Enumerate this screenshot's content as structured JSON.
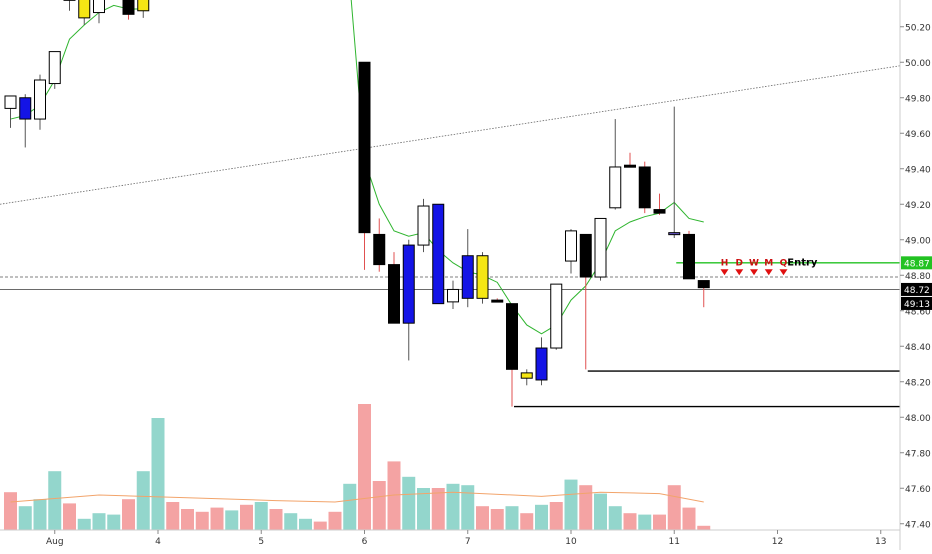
{
  "chart_data": {
    "type": "candlestick",
    "y_axis": {
      "range": [
        47.4,
        50.3
      ],
      "ticks": [
        "47.40",
        "47.60",
        "47.80",
        "48.00",
        "48.20",
        "48.40",
        "48.60",
        "48.80",
        "49.00",
        "49.20",
        "49.40",
        "49.60",
        "49.80",
        "50.00",
        "50.20"
      ],
      "tick_values": [
        47.4,
        47.6,
        47.8,
        48.0,
        48.2,
        48.4,
        48.6,
        48.8,
        49.0,
        49.2,
        49.4,
        49.6,
        49.8,
        50.0,
        50.2
      ]
    },
    "x_axis": {
      "labels": [
        {
          "text": "Aug",
          "index": 3
        },
        {
          "text": "4",
          "index": 10
        },
        {
          "text": "5",
          "index": 17
        },
        {
          "text": "6",
          "index": 24
        },
        {
          "text": "7",
          "index": 31
        },
        {
          "text": "10",
          "index": 38
        },
        {
          "text": "11",
          "index": 45
        },
        {
          "text": "12",
          "index": 52
        },
        {
          "text": "13",
          "index": 59
        }
      ],
      "slot_count": 63
    },
    "candles": [
      {
        "i": 0,
        "o": 49.74,
        "h": 49.81,
        "l": 49.63,
        "c": 49.81,
        "color": "white"
      },
      {
        "i": 1,
        "o": 49.8,
        "h": 49.82,
        "l": 49.52,
        "c": 49.68,
        "color": "blue"
      },
      {
        "i": 2,
        "o": 49.68,
        "h": 49.93,
        "l": 49.62,
        "c": 49.9,
        "color": "white"
      },
      {
        "i": 3,
        "o": 49.88,
        "h": 50.06,
        "l": 49.85,
        "c": 50.06,
        "color": "white"
      },
      {
        "i": 4,
        "o": 50.36,
        "h": 50.38,
        "l": 50.29,
        "c": 50.36,
        "color": "white"
      },
      {
        "i": 5,
        "o": 50.37,
        "h": 50.4,
        "l": 50.21,
        "c": 50.25,
        "color": "yellow"
      },
      {
        "i": 6,
        "o": 50.28,
        "h": 50.4,
        "l": 50.22,
        "c": 50.36,
        "color": "white"
      },
      {
        "i": 8,
        "o": 50.36,
        "h": 50.38,
        "l": 50.24,
        "c": 50.27,
        "color": "black"
      },
      {
        "i": 9,
        "o": 50.36,
        "h": 50.38,
        "l": 50.25,
        "c": 50.29,
        "color": "yellow"
      },
      {
        "i": 24,
        "o": 50.0,
        "h": 50.0,
        "l": 48.83,
        "c": 49.04,
        "color": "black"
      },
      {
        "i": 25,
        "o": 49.03,
        "h": 49.12,
        "l": 48.82,
        "c": 48.86,
        "color": "black"
      },
      {
        "i": 26,
        "o": 48.86,
        "h": 48.93,
        "l": 48.53,
        "c": 48.53,
        "color": "black"
      },
      {
        "i": 27,
        "o": 48.53,
        "h": 49.0,
        "l": 48.32,
        "c": 48.97,
        "color": "blue"
      },
      {
        "i": 28,
        "o": 48.97,
        "h": 49.23,
        "l": 48.93,
        "c": 49.19,
        "color": "white"
      },
      {
        "i": 29,
        "o": 49.2,
        "h": 49.2,
        "l": 48.64,
        "c": 48.64,
        "color": "blue"
      },
      {
        "i": 30,
        "o": 48.65,
        "h": 48.77,
        "l": 48.61,
        "c": 48.72,
        "color": "white"
      },
      {
        "i": 31,
        "o": 48.91,
        "h": 49.06,
        "l": 48.62,
        "c": 48.67,
        "color": "blue"
      },
      {
        "i": 32,
        "o": 48.67,
        "h": 48.93,
        "l": 48.64,
        "c": 48.91,
        "color": "yellow"
      },
      {
        "i": 33,
        "o": 48.66,
        "h": 48.67,
        "l": 48.66,
        "c": 48.66,
        "color": "black"
      },
      {
        "i": 34,
        "o": 48.64,
        "h": 48.64,
        "l": 48.06,
        "c": 48.27,
        "color": "black"
      },
      {
        "i": 35,
        "o": 48.22,
        "h": 48.27,
        "l": 48.18,
        "c": 48.25,
        "color": "yellow"
      },
      {
        "i": 36,
        "o": 48.21,
        "h": 48.45,
        "l": 48.18,
        "c": 48.39,
        "color": "blue"
      },
      {
        "i": 37,
        "o": 48.39,
        "h": 48.75,
        "l": 48.38,
        "c": 48.75,
        "color": "white"
      },
      {
        "i": 38,
        "o": 48.88,
        "h": 49.06,
        "l": 48.81,
        "c": 49.05,
        "color": "white"
      },
      {
        "i": 39,
        "o": 49.03,
        "h": 49.03,
        "l": 48.27,
        "c": 48.79,
        "color": "black"
      },
      {
        "i": 40,
        "o": 48.79,
        "h": 49.12,
        "l": 48.77,
        "c": 49.12,
        "color": "white"
      },
      {
        "i": 41,
        "o": 49.18,
        "h": 49.68,
        "l": 49.17,
        "c": 49.41,
        "color": "white"
      },
      {
        "i": 42,
        "o": 49.42,
        "h": 49.49,
        "l": 49.42,
        "c": 49.42,
        "color": "black"
      },
      {
        "i": 43,
        "o": 49.41,
        "h": 49.44,
        "l": 49.15,
        "c": 49.18,
        "color": "black"
      },
      {
        "i": 44,
        "o": 49.17,
        "h": 49.26,
        "l": 49.14,
        "c": 49.15,
        "color": "black"
      },
      {
        "i": 45,
        "o": 49.04,
        "h": 49.75,
        "l": 49.01,
        "c": 49.04,
        "color": "purple"
      },
      {
        "i": 46,
        "o": 49.03,
        "h": 49.05,
        "l": 48.79,
        "c": 48.78,
        "color": "black"
      },
      {
        "i": 47,
        "o": 48.77,
        "h": 48.77,
        "l": 48.62,
        "c": 48.73,
        "color": "black"
      }
    ],
    "ema": [
      {
        "i": 0,
        "v": 49.68
      },
      {
        "i": 1,
        "v": 49.7
      },
      {
        "i": 2,
        "v": 49.76
      },
      {
        "i": 3,
        "v": 49.9
      },
      {
        "i": 4,
        "v": 50.13
      },
      {
        "i": 5,
        "v": 50.21
      },
      {
        "i": 6,
        "v": 50.28
      },
      {
        "i": 7,
        "v": 50.32
      },
      {
        "i": 8,
        "v": 50.3
      },
      {
        "i": 9,
        "v": 50.3
      },
      {
        "i": 23,
        "v": 50.45
      },
      {
        "i": 24,
        "v": 49.45
      },
      {
        "i": 25,
        "v": 49.2
      },
      {
        "i": 26,
        "v": 49.05
      },
      {
        "i": 27,
        "v": 49.02
      },
      {
        "i": 28,
        "v": 49.04
      },
      {
        "i": 29,
        "v": 48.94
      },
      {
        "i": 30,
        "v": 48.87
      },
      {
        "i": 31,
        "v": 48.82
      },
      {
        "i": 32,
        "v": 48.8
      },
      {
        "i": 33,
        "v": 48.76
      },
      {
        "i": 34,
        "v": 48.63
      },
      {
        "i": 35,
        "v": 48.52
      },
      {
        "i": 36,
        "v": 48.47
      },
      {
        "i": 37,
        "v": 48.52
      },
      {
        "i": 38,
        "v": 48.66
      },
      {
        "i": 39,
        "v": 48.74
      },
      {
        "i": 40,
        "v": 48.87
      },
      {
        "i": 41,
        "v": 49.05
      },
      {
        "i": 42,
        "v": 49.1
      },
      {
        "i": 43,
        "v": 49.13
      },
      {
        "i": 44,
        "v": 49.15
      },
      {
        "i": 45,
        "v": 49.21
      },
      {
        "i": 46,
        "v": 49.12
      },
      {
        "i": 47,
        "v": 49.1
      }
    ],
    "volume": [
      {
        "i": 0,
        "h": 0.27,
        "color": "red"
      },
      {
        "i": 1,
        "h": 0.17,
        "color": "green"
      },
      {
        "i": 2,
        "h": 0.22,
        "color": "green"
      },
      {
        "i": 3,
        "h": 0.42,
        "color": "green"
      },
      {
        "i": 4,
        "h": 0.19,
        "color": "red"
      },
      {
        "i": 5,
        "h": 0.08,
        "color": "green"
      },
      {
        "i": 6,
        "h": 0.12,
        "color": "green"
      },
      {
        "i": 7,
        "h": 0.11,
        "color": "green"
      },
      {
        "i": 8,
        "h": 0.22,
        "color": "red"
      },
      {
        "i": 9,
        "h": 0.42,
        "color": "green"
      },
      {
        "i": 10,
        "h": 0.8,
        "color": "green"
      },
      {
        "i": 11,
        "h": 0.2,
        "color": "red"
      },
      {
        "i": 12,
        "h": 0.15,
        "color": "red"
      },
      {
        "i": 13,
        "h": 0.13,
        "color": "red"
      },
      {
        "i": 14,
        "h": 0.16,
        "color": "red"
      },
      {
        "i": 15,
        "h": 0.14,
        "color": "green"
      },
      {
        "i": 16,
        "h": 0.18,
        "color": "red"
      },
      {
        "i": 17,
        "h": 0.2,
        "color": "green"
      },
      {
        "i": 18,
        "h": 0.15,
        "color": "red"
      },
      {
        "i": 19,
        "h": 0.12,
        "color": "green"
      },
      {
        "i": 20,
        "h": 0.08,
        "color": "green"
      },
      {
        "i": 21,
        "h": 0.06,
        "color": "red"
      },
      {
        "i": 22,
        "h": 0.13,
        "color": "red"
      },
      {
        "i": 23,
        "h": 0.33,
        "color": "green"
      },
      {
        "i": 24,
        "h": 0.9,
        "color": "red"
      },
      {
        "i": 25,
        "h": 0.35,
        "color": "red"
      },
      {
        "i": 26,
        "h": 0.49,
        "color": "red"
      },
      {
        "i": 27,
        "h": 0.38,
        "color": "green"
      },
      {
        "i": 28,
        "h": 0.3,
        "color": "green"
      },
      {
        "i": 29,
        "h": 0.3,
        "color": "red"
      },
      {
        "i": 30,
        "h": 0.33,
        "color": "green"
      },
      {
        "i": 31,
        "h": 0.32,
        "color": "green"
      },
      {
        "i": 32,
        "h": 0.17,
        "color": "red"
      },
      {
        "i": 33,
        "h": 0.15,
        "color": "red"
      },
      {
        "i": 34,
        "h": 0.17,
        "color": "green"
      },
      {
        "i": 35,
        "h": 0.12,
        "color": "red"
      },
      {
        "i": 36,
        "h": 0.18,
        "color": "green"
      },
      {
        "i": 37,
        "h": 0.2,
        "color": "red"
      },
      {
        "i": 38,
        "h": 0.36,
        "color": "green"
      },
      {
        "i": 39,
        "h": 0.32,
        "color": "red"
      },
      {
        "i": 40,
        "h": 0.26,
        "color": "green"
      },
      {
        "i": 41,
        "h": 0.17,
        "color": "green"
      },
      {
        "i": 42,
        "h": 0.12,
        "color": "red"
      },
      {
        "i": 43,
        "h": 0.11,
        "color": "green"
      },
      {
        "i": 44,
        "h": 0.11,
        "color": "red"
      },
      {
        "i": 45,
        "h": 0.32,
        "color": "red"
      },
      {
        "i": 46,
        "h": 0.16,
        "color": "red"
      },
      {
        "i": 47,
        "h": 0.03,
        "color": "red"
      }
    ],
    "volume_ma": [
      {
        "i": 0,
        "v": 0.2
      },
      {
        "i": 6,
        "v": 0.25
      },
      {
        "i": 12,
        "v": 0.23
      },
      {
        "i": 18,
        "v": 0.21
      },
      {
        "i": 22,
        "v": 0.2
      },
      {
        "i": 26,
        "v": 0.25
      },
      {
        "i": 30,
        "v": 0.27
      },
      {
        "i": 36,
        "v": 0.24
      },
      {
        "i": 40,
        "v": 0.27
      },
      {
        "i": 44,
        "v": 0.26
      },
      {
        "i": 47,
        "v": 0.2
      }
    ],
    "horizontal_lines": [
      {
        "name": "target-line",
        "value": 48.87,
        "from_index": 45,
        "color": "#22c222"
      },
      {
        "name": "support-line-1",
        "value": 48.26,
        "from_index": 39,
        "color": "#000000"
      },
      {
        "name": "support-line-2",
        "value": 48.06,
        "from_index": 34,
        "color": "#000000"
      },
      {
        "name": "current-line-1",
        "value": 48.79,
        "from_index": 0,
        "color": "#555555",
        "dashed": true
      },
      {
        "name": "current-line-2",
        "value": 48.72,
        "from_index": 0,
        "color": "#555555",
        "dashed": false
      }
    ],
    "trendline": {
      "from": {
        "i": 0,
        "v": 49.2
      },
      "to": {
        "i": 62,
        "v": 49.98
      }
    },
    "price_tags": [
      {
        "text": "48.87",
        "value": 48.87,
        "bg": "#22c222",
        "fg": "#ffffff"
      },
      {
        "text": "48.72",
        "value": 48.72,
        "bg": "#000000",
        "fg": "#ffffff"
      },
      {
        "text": "49:13",
        "value": 48.64,
        "bg": "#000000",
        "fg": "#ffffff"
      }
    ],
    "signal_markers": [
      {
        "label": "H",
        "i": 48
      },
      {
        "label": "D",
        "i": 49
      },
      {
        "label": "W",
        "i": 50
      },
      {
        "label": "M",
        "i": 51
      },
      {
        "label": "Q",
        "i": 52
      }
    ],
    "signal_value": 48.8,
    "entry_label": "Entry",
    "axis_bottom_cut_label": "47.40"
  }
}
